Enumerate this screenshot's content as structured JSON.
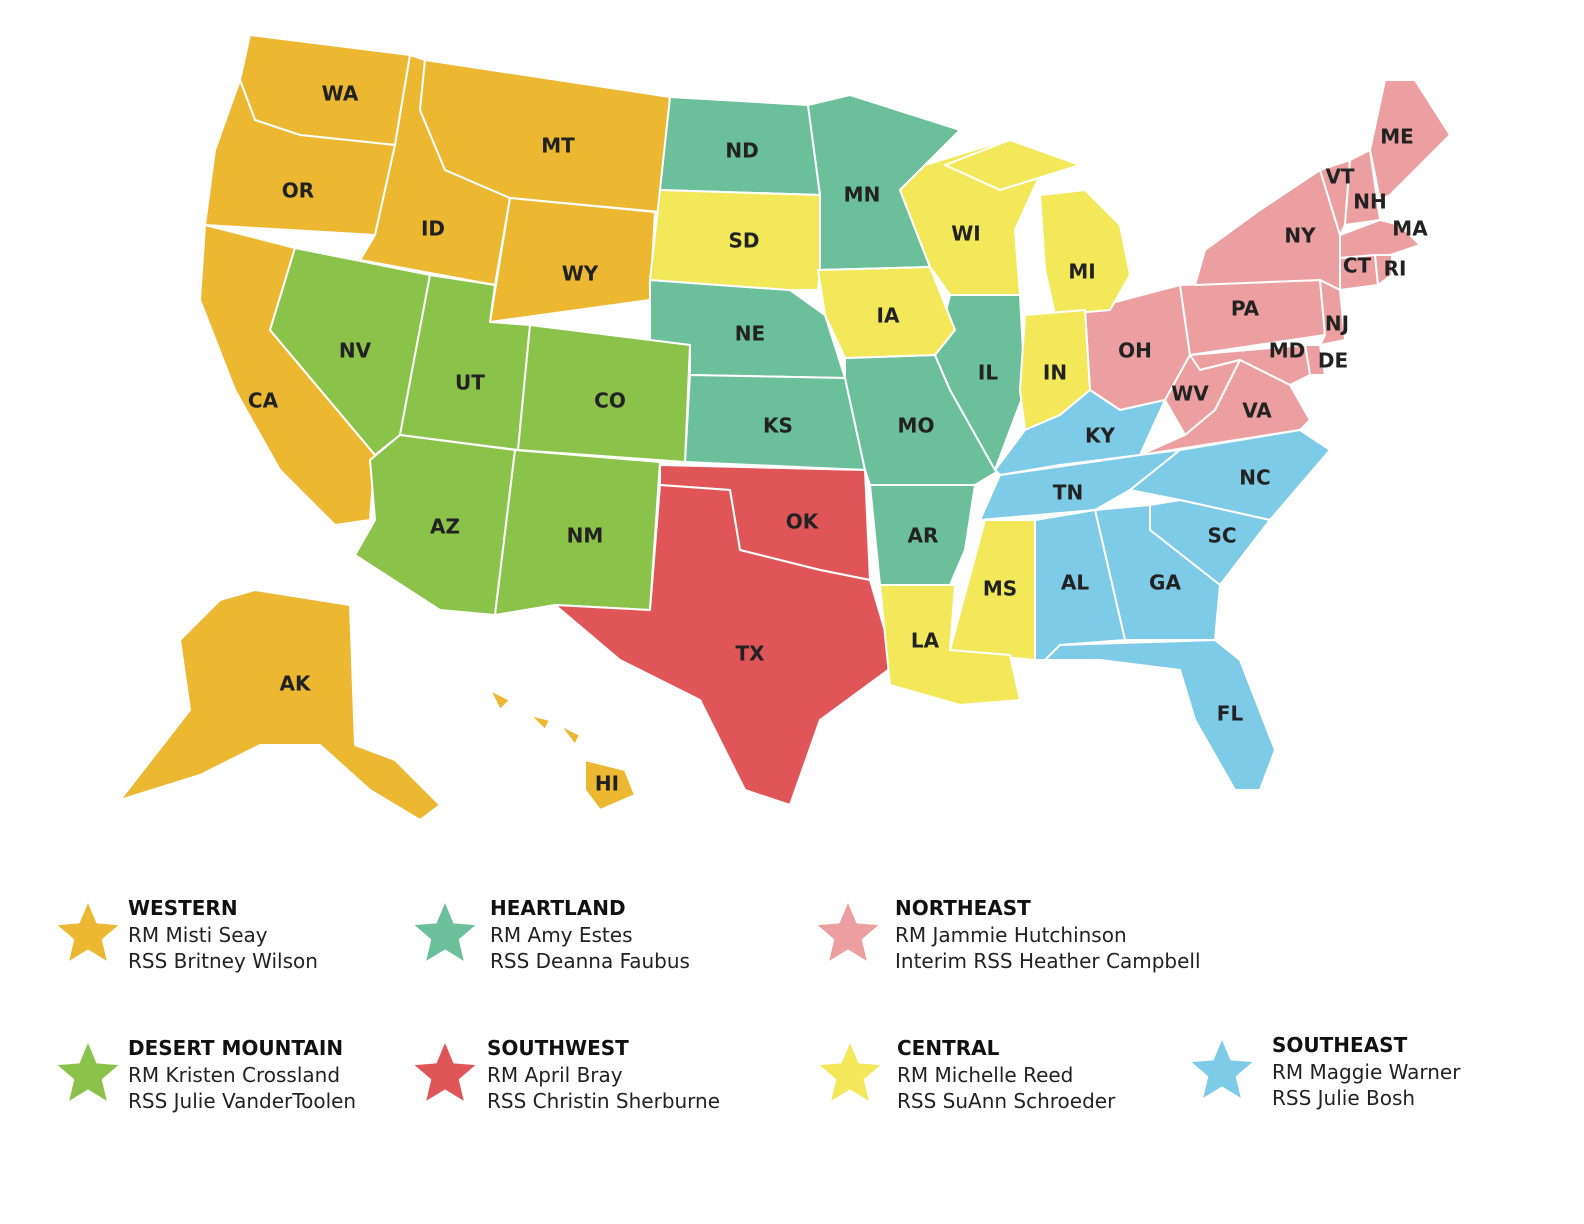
{
  "map": {
    "regions": [
      {
        "name": "WESTERN",
        "color": "#ecb731",
        "rm": "RM Misti Seay",
        "rss": "RSS Britney Wilson",
        "states": [
          "WA",
          "OR",
          "CA",
          "ID",
          "MT",
          "WY",
          "AK",
          "HI"
        ]
      },
      {
        "name": "HEARTLAND",
        "color": "#6bbf9b",
        "rm": "RM Amy Estes",
        "rss": "RSS Deanna Faubus",
        "states": [
          "ND",
          "NE",
          "KS",
          "MN",
          "MO",
          "IL",
          "AR"
        ]
      },
      {
        "name": "NORTHEAST",
        "color": "#ec9fa0",
        "rm": "RM Jammie Hutchinson",
        "rss": "Interim RSS Heather Campbell",
        "states": [
          "OH",
          "PA",
          "NY",
          "VT",
          "NH",
          "ME",
          "MA",
          "CT",
          "RI",
          "NJ",
          "DE",
          "MD",
          "WV",
          "VA"
        ]
      },
      {
        "name": "DESERT MOUNTAIN",
        "color": "#8bc34a",
        "rm": "RM Kristen Crossland",
        "rss": "RSS Julie VanderToolen",
        "states": [
          "NV",
          "UT",
          "CO",
          "AZ",
          "NM"
        ]
      },
      {
        "name": "SOUTHWEST",
        "color": "#e05658",
        "rm": "RM April Bray",
        "rss": "RSS Christin Sherburne",
        "states": [
          "OK",
          "TX"
        ]
      },
      {
        "name": "CENTRAL",
        "color": "#f2e85a",
        "rm": "RM Michelle Reed",
        "rss": "RSS SuAnn Schroeder",
        "states": [
          "SD",
          "IA",
          "WI",
          "MI",
          "IN",
          "MS",
          "LA"
        ]
      },
      {
        "name": "SOUTHEAST",
        "color": "#7ecbe8",
        "rm": "RM Maggie Warner",
        "rss": "RSS Julie Bosh",
        "states": [
          "KY",
          "TN",
          "NC",
          "SC",
          "GA",
          "AL",
          "FL"
        ]
      }
    ]
  }
}
